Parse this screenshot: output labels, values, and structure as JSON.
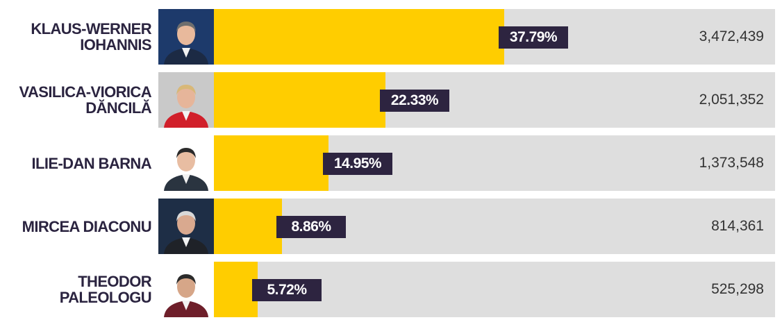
{
  "colors": {
    "bar_fill": "#ffcd00",
    "bar_track": "#dedede",
    "label_background": "#2d2440",
    "name_text": "#2b2440"
  },
  "chart_data": {
    "type": "bar",
    "orientation": "horizontal",
    "xlim": [
      0,
      73
    ],
    "categories": [
      "KLAUS-WERNER\nIOHANNIS",
      "VASILICA-VIORICA\nDĂNCILĂ",
      "ILIE-DAN BARNA",
      "MIRCEA DIACONU",
      "THEODOR\nPALEOLOGU"
    ],
    "values": [
      37.79,
      22.33,
      14.95,
      8.86,
      5.72
    ],
    "value_labels": [
      "37.79%",
      "22.33%",
      "14.95%",
      "8.86%",
      "5.72%"
    ],
    "votes": [
      "3,472,439",
      "2,051,352",
      "1,373,548",
      "814,361",
      "525,298"
    ],
    "photos": [
      "candidate-photo",
      "candidate-photo",
      "candidate-photo",
      "candidate-photo",
      "candidate-photo"
    ]
  }
}
